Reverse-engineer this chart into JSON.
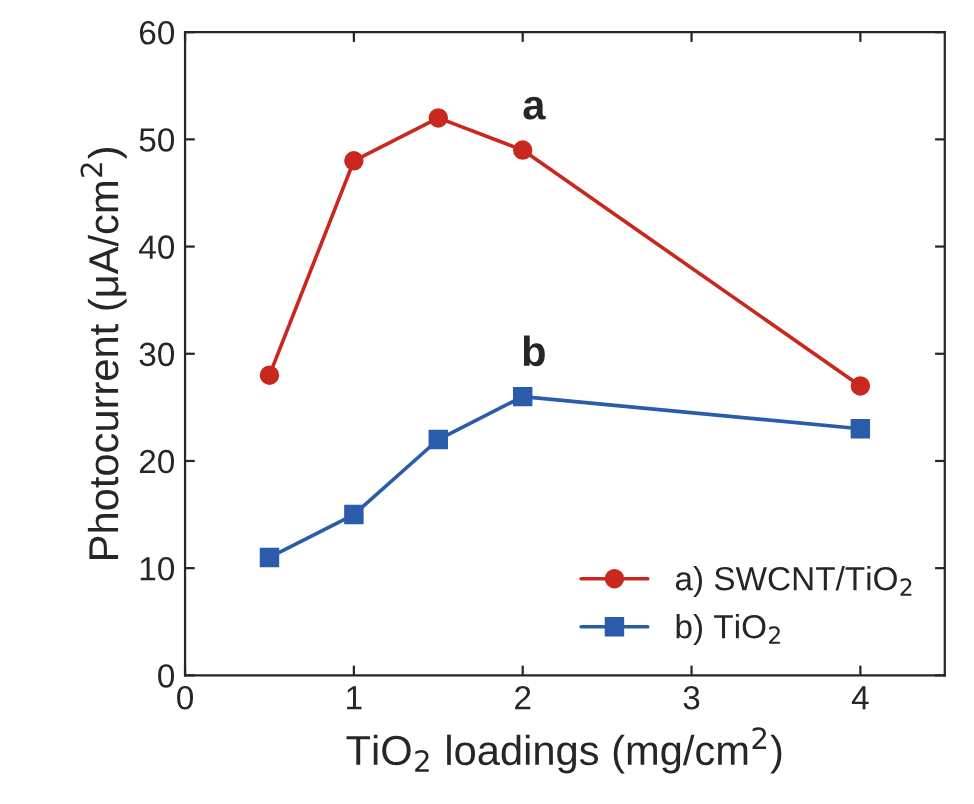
{
  "chart_data": {
    "type": "line",
    "xlabel": "TiO$_{2}$ loadings (mg/cm$^{2}$)",
    "ylabel": "Photocurrent (μA/cm$^{2}$)",
    "xlim": [
      0,
      4.5
    ],
    "xticks": [
      0,
      1,
      2,
      3,
      4
    ],
    "ylim": [
      0,
      60
    ],
    "yticks": [
      0,
      10,
      20,
      30,
      40,
      50,
      60
    ],
    "x": [
      0.5,
      1,
      1.5,
      2,
      4
    ],
    "series": [
      {
        "name": "a) SWCNT/TiO$_{2}$",
        "color": "#c8281e",
        "marker": "circle",
        "values": [
          28,
          48,
          52,
          49,
          27
        ]
      },
      {
        "name": "b) TiO$_{2}$",
        "color": "#2a5cab",
        "marker": "square",
        "values": [
          11,
          15,
          22,
          26,
          23
        ]
      }
    ],
    "annotations": [
      {
        "text": "a",
        "x": 2,
        "y": 49
      },
      {
        "text": "b",
        "x": 2,
        "y": 26
      }
    ],
    "legend": "bottom right",
    "grid": false
  }
}
